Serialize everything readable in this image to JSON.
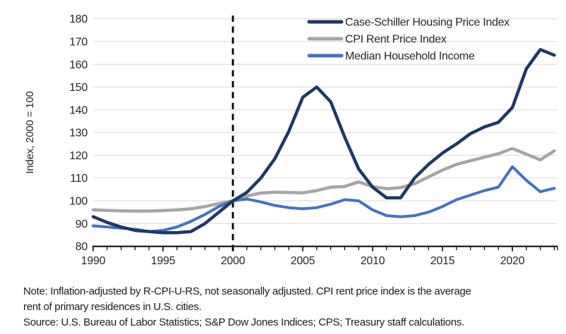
{
  "chart_data": {
    "type": "line",
    "title": "",
    "ylabel": "Index, 2000 = 100",
    "xlabel": "",
    "ylim": [
      80,
      180
    ],
    "ytick_step": 10,
    "yticks": [
      80,
      90,
      100,
      110,
      120,
      130,
      140,
      150,
      160,
      170,
      180
    ],
    "xlim": [
      1990,
      2023.3
    ],
    "xticks_labeled": [
      1990,
      1995,
      2000,
      2005,
      2010,
      2015,
      2020
    ],
    "grid": "horizontal-light",
    "legend_position": "top-right-inside",
    "reference_line": {
      "x": 2000,
      "style": "dashed",
      "color": "#000000"
    },
    "x": [
      1990,
      1991,
      1992,
      1993,
      1994,
      1995,
      1996,
      1997,
      1998,
      1999,
      2000,
      2001,
      2002,
      2003,
      2004,
      2005,
      2006,
      2007,
      2008,
      2009,
      2010,
      2011,
      2012,
      2013,
      2014,
      2015,
      2016,
      2017,
      2018,
      2019,
      2020,
      2021,
      2022,
      2023
    ],
    "series": [
      {
        "name": "Case-Schiller Housing Price Index",
        "color": "#1F3864",
        "width": 4.5,
        "values": [
          93,
          90.5,
          88.5,
          87,
          86.5,
          86,
          86,
          86.5,
          90,
          95,
          100,
          103.7,
          110,
          118.5,
          130.5,
          145.5,
          150,
          143.5,
          128,
          114,
          106,
          101.3,
          101.3,
          110,
          116,
          121,
          125,
          129.5,
          132.5,
          134.5,
          141,
          158,
          166.5,
          164
        ]
      },
      {
        "name": "CPI Rent Price Index",
        "color": "#A6A6A6",
        "width": 4.5,
        "values": [
          96,
          95.8,
          95.6,
          95.5,
          95.5,
          95.7,
          96,
          96.5,
          97.5,
          98.8,
          100,
          102.1,
          103.4,
          103.8,
          103.7,
          103.5,
          104.5,
          106,
          106.3,
          108.3,
          106.3,
          105.3,
          105.8,
          107.5,
          110.5,
          113.5,
          116,
          117.6,
          119.2,
          120.7,
          123,
          120.5,
          118,
          122
        ]
      },
      {
        "name": "Median Household Income",
        "color": "#4472C4",
        "width": 4,
        "values": [
          89,
          88.5,
          88,
          87.5,
          86.5,
          87,
          88.5,
          91,
          94,
          97.5,
          100,
          100.8,
          99.5,
          98,
          97,
          96.5,
          97,
          98.5,
          100.5,
          100,
          96,
          93.5,
          93,
          93.5,
          95,
          97.5,
          100.5,
          102.5,
          104.5,
          106,
          115,
          109,
          104,
          105.5
        ]
      }
    ]
  },
  "legend": {
    "items": [
      {
        "label": "Case-Schiller Housing Price Index",
        "color": "#1F3864"
      },
      {
        "label": "CPI Rent Price Index",
        "color": "#A6A6A6"
      },
      {
        "label": "Median Household Income",
        "color": "#4472C4"
      }
    ]
  },
  "axis": {
    "y_title": "Index, 2000 = 100",
    "y_tick_labels": [
      "80",
      "90",
      "100",
      "110",
      "120",
      "130",
      "140",
      "150",
      "160",
      "170",
      "180"
    ],
    "x_tick_labels": [
      "1990",
      "1995",
      "2000",
      "2005",
      "2010",
      "2015",
      "2020"
    ]
  },
  "notes": {
    "line1": "Note: Inflation-adjusted by R-CPI-U-RS, not seasonally adjusted. CPI rent price index is the average",
    "line2": "rent of primary residences in U.S. cities.",
    "source": "Source: U.S. Bureau of Labor Statistics; S&P Dow Jones Indices; CPS; Treasury staff calculations."
  },
  "colors": {
    "background": "#FFFFFF",
    "gridline": "#D9D9D9",
    "axis": "#000000",
    "text": "#262626",
    "navy": "#1F3864",
    "gray": "#A6A6A6",
    "blue": "#4472C4"
  }
}
